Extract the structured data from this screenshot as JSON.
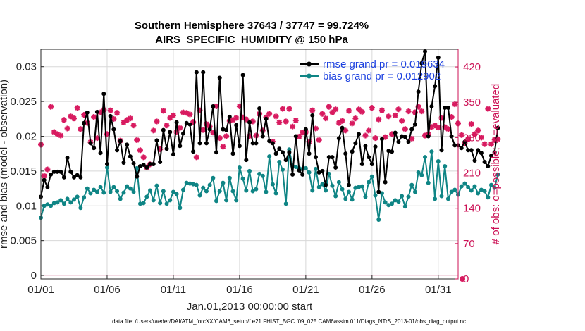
{
  "chart_data": {
    "type": "line",
    "title_line1": "Southern Hemisphere 37643 / 37747 = 99.724%",
    "title_line2": "AIRS_SPECIFIC_HUMIDITY @ 150 hPa",
    "xlabel": "Jan.01,2013 00:00:00 start",
    "ylabel_left": "rmse and bias (model - observation)",
    "ylabel_right": "# of obs: o=possible; ∗=evaluated",
    "footnote": "data file: /Users/raeder/DAI/ATM_forcXX/CAM6_setup/f.e21.FHIST_BGC.f09_025.CAM6assim.011/Diags_NTrS_2013-01/obs_diag_output.nc",
    "xlim": [
      1,
      32.5
    ],
    "ylim_left": [
      -0.0005,
      0.0325
    ],
    "ylim_right": [
      0,
      455
    ],
    "x_ticks": [
      1,
      6,
      11,
      16,
      21,
      26,
      31
    ],
    "x_tick_labels": [
      "01/01",
      "01/06",
      "01/11",
      "01/16",
      "01/21",
      "01/26",
      "01/31"
    ],
    "y_ticks_left": [
      0,
      0.005,
      0.01,
      0.015,
      0.02,
      0.025,
      0.03
    ],
    "y_tick_labels_left": [
      "0",
      "0.005",
      "0.01",
      "0.015",
      "0.02",
      "0.025",
      "0.03"
    ],
    "y_ticks_right": [
      0,
      70,
      140,
      210,
      280,
      350,
      420
    ],
    "y_tick_labels_right": [
      "0",
      "70",
      "140",
      "210",
      "280",
      "350",
      "420"
    ],
    "legend": {
      "position": "top-right",
      "rmse_label": "rmse grand pr = 0.019634",
      "bias_label": "bias grand pr = 0.012902"
    },
    "colors": {
      "rmse": "#000000",
      "bias": "#0f8585",
      "obs": "#d81b60",
      "grid": "#d8d8d8",
      "right_axis": "#cc1155",
      "legend_text": "#1a3fe0"
    },
    "series": [
      {
        "name": "rmse",
        "values": [
          0.0113,
          0.0137,
          0.0127,
          0.0145,
          0.0149,
          0.0149,
          0.0149,
          0.0141,
          0.0169,
          0.0149,
          0.0141,
          0.0144,
          0.0141,
          0.0219,
          0.0234,
          0.019,
          0.0183,
          0.0235,
          0.0176,
          0.0261,
          0.016,
          0.0229,
          0.021,
          0.018,
          0.0193,
          0.0162,
          0.0188,
          0.0171,
          0.0161,
          0.0142,
          0.0157,
          0.0159,
          0.0155,
          0.016,
          0.016,
          0.0194,
          0.0163,
          0.0209,
          0.0182,
          0.0206,
          0.0174,
          0.022,
          0.0186,
          0.0204,
          0.0219,
          0.0217,
          0.0178,
          0.0292,
          0.019,
          0.0292,
          0.019,
          0.021,
          0.0243,
          0.0177,
          0.0284,
          0.021,
          0.0209,
          0.0228,
          0.0175,
          0.0216,
          0.0186,
          0.0288,
          0.0166,
          0.022,
          0.019,
          0.019,
          0.024,
          0.02,
          0.0225,
          0.0193,
          0.019,
          0.0175,
          0.0182,
          0.0177,
          0.0166,
          0.0177,
          0.0145,
          0.02,
          0.0151,
          0.0145,
          0.021,
          0.0175,
          0.023,
          0.017,
          0.0148,
          0.015,
          0.013,
          0.017,
          0.017,
          0.0155,
          0.0197,
          0.0212,
          0.0175,
          0.013,
          0.0178,
          0.019,
          0.0203,
          0.016,
          0.0186,
          0.017,
          0.016,
          0.0185,
          0.012,
          0.0196,
          0.0134,
          0.0179,
          0.0178,
          0.0205,
          0.0192,
          0.02,
          0.0199,
          0.0192,
          0.021,
          0.0217,
          0.0264,
          0.0305,
          0.0322,
          0.02,
          0.0243,
          0.0272,
          0.0313,
          0.018,
          0.0241,
          0.0241,
          0.02,
          0.0187,
          0.0187,
          0.0183,
          0.0192,
          0.018,
          0.018,
          0.0165,
          0.018,
          0.0176,
          0.0163,
          0.0157,
          0.0172,
          0.0177,
          0.0212
        ]
      },
      {
        "name": "bias",
        "values": [
          0.0083,
          0.01,
          0.0102,
          0.01,
          0.0104,
          0.0105,
          0.0108,
          0.0103,
          0.011,
          0.0105,
          0.0109,
          0.0113,
          0.0097,
          0.0112,
          0.0125,
          0.0118,
          0.0123,
          0.012,
          0.0127,
          0.0119,
          0.0155,
          0.012,
          0.0127,
          0.0121,
          0.011,
          0.0119,
          0.0128,
          0.0125,
          0.012,
          0.0154,
          0.0103,
          0.0104,
          0.0113,
          0.0122,
          0.0108,
          0.0129,
          0.0104,
          0.0121,
          0.0103,
          0.0108,
          0.012,
          0.0117,
          0.0097,
          0.0123,
          0.0133,
          0.0132,
          0.0131,
          0.013,
          0.0115,
          0.0126,
          0.0121,
          0.013,
          0.014,
          0.0107,
          0.0121,
          0.0133,
          0.0108,
          0.014,
          0.0121,
          0.0108,
          0.0155,
          0.0139,
          0.0122,
          0.015,
          0.0121,
          0.0124,
          0.0146,
          0.0143,
          0.012,
          0.0171,
          0.0131,
          0.0118,
          0.0163,
          0.0152,
          0.0103,
          0.0181,
          0.0157,
          0.0156,
          0.0154,
          0.0153,
          0.0154,
          0.0148,
          0.0122,
          0.0153,
          0.0127,
          0.0131,
          0.0122,
          0.0146,
          0.0129,
          0.0114,
          0.0134,
          0.0124,
          0.011,
          0.012,
          0.0109,
          0.0126,
          0.0127,
          0.0128,
          0.0113,
          0.0134,
          0.0142,
          0.0115,
          0.008,
          0.0118,
          0.0105,
          0.0101,
          0.0103,
          0.0108,
          0.0106,
          0.0114,
          0.0099,
          0.0113,
          0.013,
          0.012,
          0.0148,
          0.0144,
          0.017,
          0.0133,
          0.0178,
          0.011,
          0.0164,
          0.0114,
          0.0157,
          0.011,
          0.012,
          0.0123,
          0.0116,
          0.0128,
          0.0132,
          0.0127,
          0.0122,
          0.0128,
          0.0118,
          0.0123,
          0.0121,
          0.0112,
          0.013,
          0.0126,
          0.0145
        ]
      },
      {
        "name": "obs_evaluated",
        "values": [
          266,
          204,
          217,
          341,
          291,
          287,
          284,
          315,
          298,
          322,
          318,
          339,
          297,
          325,
          309,
          271,
          321,
          279,
          330,
          335,
          287,
          334,
          317,
          329,
          274,
          310,
          315,
          318,
          304,
          275,
          255,
          241,
          221,
          227,
          294,
          312,
          257,
          333,
          304,
          319,
          324,
          291,
          299,
          330,
          329,
          326,
          311,
          241,
          334,
          295,
          307,
          302,
          290,
          342,
          279,
          262,
          283,
          313,
          315,
          319,
          342,
          320,
          316,
          283,
          312,
          284,
          327,
          294,
          320,
          327,
          272,
          322,
          310,
          337,
          312,
          337,
          302,
          314,
          282,
          290,
          291,
          272,
          334,
          298,
          275,
          327,
          318,
          341,
          330,
          336,
          309,
          313,
          294,
          333,
          308,
          318,
          336,
          331,
          284,
          294,
          339,
          279,
          316,
          334,
          281,
          322,
          287,
          324,
          336,
          313,
          297,
          332,
          278,
          330,
          341,
          332,
          284,
          287,
          301,
          304,
          300,
          319,
          301,
          297,
          321,
          346,
          308,
          285,
          269,
          277,
          307,
          287,
          294,
          280,
          267,
          337,
          267,
          276,
          277
        ]
      }
    ]
  }
}
